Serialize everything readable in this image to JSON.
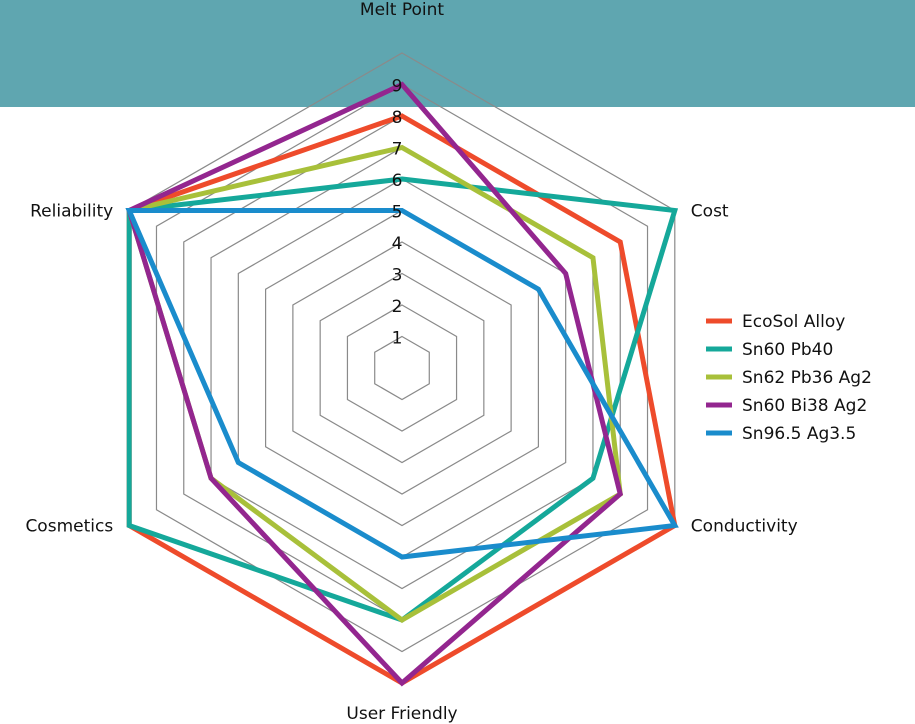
{
  "colors": {
    "banner": "#5fa6b0",
    "grid": "#8a8a8a"
  },
  "chart_data": {
    "type": "radar",
    "title": "",
    "axes": [
      "Melt Point",
      "Cost",
      "Conductivity",
      "User Friendly",
      "Cosmetics",
      "Reliability"
    ],
    "ticks": [
      "1",
      "2",
      "3",
      "4",
      "5",
      "6",
      "7",
      "8",
      "9"
    ],
    "range": [
      0,
      10
    ],
    "grid": true,
    "legend_position": "right",
    "series": [
      {
        "name": "EcoSol Alloy",
        "color": "#ee4b2b",
        "values": [
          8,
          8,
          10,
          10,
          10,
          10
        ]
      },
      {
        "name": "Sn60 Pb40",
        "color": "#15a89a",
        "values": [
          6,
          10,
          7,
          8,
          10,
          10
        ]
      },
      {
        "name": "Sn62 Pb36 Ag2",
        "color": "#a8c03a",
        "values": [
          7,
          7,
          8,
          8,
          7,
          10
        ]
      },
      {
        "name": "Sn60 Bi38 Ag2",
        "color": "#93268f",
        "values": [
          9,
          6,
          8,
          10,
          7,
          10
        ]
      },
      {
        "name": "Sn96.5 Ag3.5",
        "color": "#1a8ccc",
        "values": [
          5,
          5,
          10,
          6,
          6,
          10
        ]
      }
    ]
  }
}
